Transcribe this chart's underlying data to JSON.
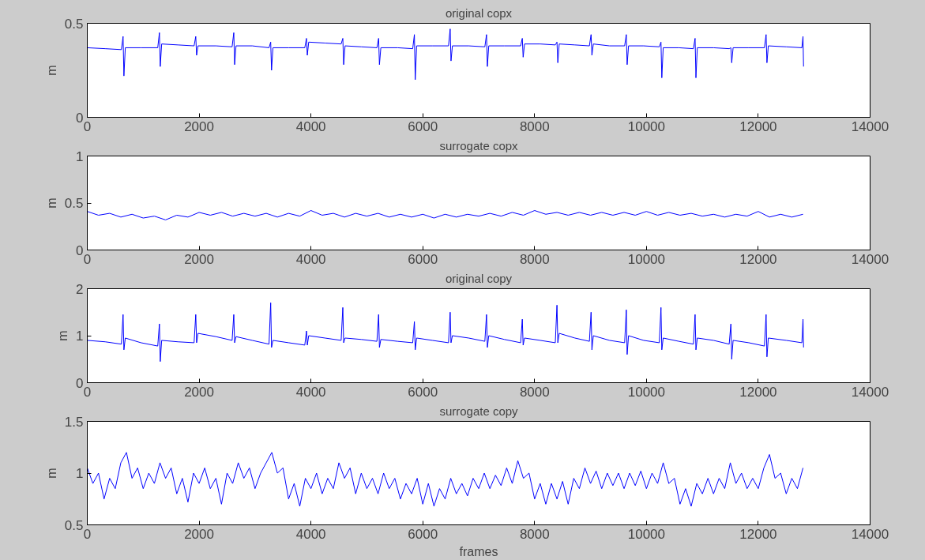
{
  "chart_data": [
    {
      "type": "line",
      "title": "original copx",
      "ylabel": "m",
      "xlim": [
        0,
        14000
      ],
      "xticks": [
        0,
        2000,
        4000,
        6000,
        8000,
        10000,
        12000,
        14000
      ],
      "ylim": [
        0,
        0.5
      ],
      "yticks": [
        0,
        0.5
      ],
      "grid": false,
      "x": [
        0,
        320,
        610,
        640,
        655,
        680,
        960,
        1260,
        1290,
        1305,
        1330,
        1620,
        1910,
        1940,
        1955,
        1980,
        2300,
        2590,
        2620,
        2635,
        2660,
        2950,
        3250,
        3280,
        3295,
        3320,
        3600,
        3890,
        3920,
        3935,
        3960,
        4250,
        4540,
        4570,
        4585,
        4610,
        4900,
        5180,
        5210,
        5225,
        5250,
        5550,
        5820,
        5850,
        5865,
        5890,
        6170,
        6460,
        6490,
        6505,
        6530,
        6820,
        7110,
        7140,
        7155,
        7180,
        7460,
        7750,
        7780,
        7795,
        7820,
        8100,
        8370,
        8400,
        8415,
        8440,
        8720,
        8980,
        9010,
        9025,
        9050,
        9340,
        9610,
        9640,
        9655,
        9680,
        9950,
        10230,
        10260,
        10275,
        10300,
        10580,
        10840,
        10870,
        10885,
        10910,
        11200,
        11480,
        11510,
        11525,
        11550,
        11830,
        12110,
        12140,
        12155,
        12180,
        12500,
        12780,
        12800,
        12810
      ],
      "series": [
        {
          "color": "#0000ff",
          "values": [
            0.37,
            0.365,
            0.36,
            0.43,
            0.22,
            0.37,
            0.37,
            0.37,
            0.45,
            0.27,
            0.39,
            0.385,
            0.38,
            0.43,
            0.33,
            0.38,
            0.38,
            0.375,
            0.45,
            0.28,
            0.38,
            0.38,
            0.37,
            0.4,
            0.25,
            0.37,
            0.37,
            0.37,
            0.42,
            0.33,
            0.4,
            0.395,
            0.39,
            0.42,
            0.28,
            0.38,
            0.375,
            0.37,
            0.42,
            0.28,
            0.37,
            0.37,
            0.365,
            0.44,
            0.2,
            0.38,
            0.38,
            0.38,
            0.47,
            0.3,
            0.38,
            0.38,
            0.375,
            0.44,
            0.27,
            0.38,
            0.38,
            0.38,
            0.42,
            0.32,
            0.39,
            0.39,
            0.385,
            0.4,
            0.29,
            0.39,
            0.385,
            0.38,
            0.44,
            0.33,
            0.39,
            0.38,
            0.38,
            0.44,
            0.28,
            0.38,
            0.38,
            0.375,
            0.4,
            0.21,
            0.37,
            0.37,
            0.365,
            0.42,
            0.21,
            0.37,
            0.37,
            0.365,
            0.37,
            0.29,
            0.37,
            0.37,
            0.37,
            0.44,
            0.29,
            0.38,
            0.375,
            0.37,
            0.43,
            0.27
          ]
        }
      ]
    },
    {
      "type": "line",
      "title": "surrogate copx",
      "ylabel": "m",
      "xlim": [
        0,
        14000
      ],
      "xticks": [
        0,
        2000,
        4000,
        6000,
        8000,
        10000,
        12000,
        14000
      ],
      "ylim": [
        0,
        1
      ],
      "yticks": [
        0,
        0.5,
        1
      ],
      "grid": false,
      "x": [
        0,
        200,
        400,
        600,
        800,
        1000,
        1200,
        1400,
        1600,
        1800,
        2000,
        2200,
        2400,
        2600,
        2800,
        3000,
        3200,
        3400,
        3600,
        3800,
        4000,
        4200,
        4400,
        4600,
        4800,
        5000,
        5200,
        5400,
        5600,
        5800,
        6000,
        6200,
        6400,
        6600,
        6800,
        7000,
        7200,
        7400,
        7600,
        7800,
        8000,
        8200,
        8400,
        8600,
        8800,
        9000,
        9200,
        9400,
        9600,
        9800,
        10000,
        10200,
        10400,
        10600,
        10800,
        11000,
        11200,
        11400,
        11600,
        11800,
        12000,
        12200,
        12400,
        12600,
        12800
      ],
      "series": [
        {
          "color": "#0000ff",
          "values": [
            0.41,
            0.37,
            0.39,
            0.35,
            0.38,
            0.34,
            0.36,
            0.32,
            0.37,
            0.35,
            0.4,
            0.37,
            0.4,
            0.36,
            0.39,
            0.36,
            0.39,
            0.35,
            0.39,
            0.36,
            0.42,
            0.37,
            0.39,
            0.35,
            0.39,
            0.36,
            0.39,
            0.35,
            0.38,
            0.35,
            0.38,
            0.34,
            0.38,
            0.35,
            0.38,
            0.36,
            0.39,
            0.36,
            0.4,
            0.37,
            0.42,
            0.38,
            0.4,
            0.37,
            0.4,
            0.37,
            0.4,
            0.37,
            0.4,
            0.37,
            0.41,
            0.37,
            0.4,
            0.37,
            0.39,
            0.36,
            0.38,
            0.35,
            0.38,
            0.36,
            0.41,
            0.35,
            0.38,
            0.35,
            0.38
          ]
        }
      ]
    },
    {
      "type": "line",
      "title": "original copy",
      "ylabel": "m",
      "xlim": [
        0,
        14000
      ],
      "xticks": [
        0,
        2000,
        4000,
        6000,
        8000,
        10000,
        12000,
        14000
      ],
      "ylim": [
        0,
        2
      ],
      "yticks": [
        0,
        1,
        2
      ],
      "grid": false,
      "x": [
        0,
        320,
        610,
        640,
        655,
        680,
        960,
        1260,
        1290,
        1305,
        1330,
        1620,
        1910,
        1940,
        1955,
        1980,
        2300,
        2590,
        2620,
        2635,
        2660,
        2950,
        3250,
        3280,
        3295,
        3320,
        3600,
        3890,
        3920,
        3935,
        3960,
        4250,
        4540,
        4570,
        4585,
        4610,
        4900,
        5180,
        5210,
        5225,
        5250,
        5550,
        5820,
        5850,
        5865,
        5890,
        6170,
        6460,
        6490,
        6505,
        6530,
        6820,
        7110,
        7140,
        7155,
        7180,
        7460,
        7750,
        7780,
        7795,
        7820,
        8100,
        8370,
        8400,
        8415,
        8440,
        8720,
        8980,
        9010,
        9025,
        9050,
        9340,
        9610,
        9640,
        9655,
        9680,
        9950,
        10230,
        10260,
        10275,
        10300,
        10580,
        10840,
        10870,
        10885,
        10910,
        11200,
        11480,
        11510,
        11525,
        11550,
        11830,
        12110,
        12140,
        12155,
        12180,
        12500,
        12780,
        12800,
        12810
      ],
      "series": [
        {
          "color": "#0000ff",
          "values": [
            0.9,
            0.87,
            0.82,
            1.45,
            0.7,
            0.95,
            0.85,
            0.78,
            1.25,
            0.45,
            0.9,
            0.87,
            0.85,
            1.45,
            0.85,
            1.05,
            0.98,
            0.9,
            1.45,
            0.85,
            0.98,
            0.9,
            0.82,
            1.7,
            0.75,
            0.9,
            0.85,
            0.8,
            1.1,
            0.8,
            1.0,
            0.95,
            0.9,
            1.6,
            0.85,
            0.95,
            0.92,
            0.88,
            1.45,
            0.75,
            0.92,
            0.88,
            0.85,
            1.3,
            0.7,
            0.95,
            0.9,
            0.85,
            1.5,
            0.85,
            1.0,
            0.95,
            0.88,
            1.45,
            0.75,
            1.0,
            0.92,
            0.85,
            1.35,
            0.8,
            0.95,
            0.9,
            0.85,
            1.65,
            0.85,
            1.05,
            0.95,
            0.88,
            1.5,
            0.7,
            1.0,
            0.9,
            0.85,
            1.55,
            0.6,
            1.0,
            0.9,
            0.85,
            1.6,
            0.7,
            0.95,
            0.88,
            0.82,
            1.45,
            0.7,
            0.95,
            0.9,
            0.82,
            1.25,
            0.5,
            0.9,
            0.85,
            0.78,
            1.45,
            0.55,
            0.95,
            0.9,
            0.85,
            1.35,
            0.75
          ]
        }
      ]
    },
    {
      "type": "line",
      "title": "surrogate copy",
      "ylabel": "m",
      "xlabel": "frames",
      "xlim": [
        0,
        14000
      ],
      "xticks": [
        0,
        2000,
        4000,
        6000,
        8000,
        10000,
        12000,
        14000
      ],
      "ylim": [
        0.5,
        1.5
      ],
      "yticks": [
        0.5,
        1,
        1.5
      ],
      "grid": false,
      "x": [
        0,
        100,
        200,
        300,
        400,
        500,
        600,
        700,
        800,
        900,
        1000,
        1100,
        1200,
        1300,
        1400,
        1500,
        1600,
        1700,
        1800,
        1900,
        2000,
        2100,
        2200,
        2300,
        2400,
        2500,
        2600,
        2700,
        2800,
        2900,
        3000,
        3100,
        3200,
        3300,
        3400,
        3500,
        3600,
        3700,
        3800,
        3900,
        4000,
        4100,
        4200,
        4300,
        4400,
        4500,
        4600,
        4700,
        4800,
        4900,
        5000,
        5100,
        5200,
        5300,
        5400,
        5500,
        5600,
        5700,
        5800,
        5900,
        6000,
        6100,
        6200,
        6300,
        6400,
        6500,
        6600,
        6700,
        6800,
        6900,
        7000,
        7100,
        7200,
        7300,
        7400,
        7500,
        7600,
        7700,
        7800,
        7900,
        8000,
        8100,
        8200,
        8300,
        8400,
        8500,
        8600,
        8700,
        8800,
        8900,
        9000,
        9100,
        9200,
        9300,
        9400,
        9500,
        9600,
        9700,
        9800,
        9900,
        10000,
        10100,
        10200,
        10300,
        10400,
        10500,
        10600,
        10700,
        10800,
        10900,
        11000,
        11100,
        11200,
        11300,
        11400,
        11500,
        11600,
        11700,
        11800,
        11900,
        12000,
        12100,
        12200,
        12300,
        12400,
        12500,
        12600,
        12700,
        12800
      ],
      "series": [
        {
          "color": "#0000ff",
          "values": [
            1.05,
            0.9,
            1.0,
            0.75,
            0.95,
            0.85,
            1.1,
            1.2,
            0.95,
            1.05,
            0.85,
            1.0,
            0.9,
            1.1,
            0.95,
            1.05,
            0.8,
            0.95,
            0.72,
            1.0,
            0.9,
            1.05,
            0.85,
            0.95,
            0.7,
            1.0,
            0.9,
            1.1,
            0.95,
            1.05,
            0.85,
            1.0,
            1.1,
            1.2,
            1.0,
            1.05,
            0.75,
            0.9,
            0.68,
            0.95,
            0.85,
            1.0,
            0.8,
            0.95,
            0.85,
            1.1,
            0.95,
            1.05,
            0.8,
            1.0,
            0.85,
            0.95,
            0.8,
            1.0,
            0.85,
            0.95,
            0.75,
            0.9,
            0.8,
            0.95,
            0.7,
            0.9,
            0.68,
            0.85,
            0.75,
            0.95,
            0.8,
            0.9,
            0.78,
            0.95,
            0.85,
            1.0,
            0.85,
            0.98,
            0.88,
            1.05,
            0.9,
            1.12,
            0.95,
            1.0,
            0.75,
            0.9,
            0.7,
            0.9,
            0.75,
            0.92,
            0.7,
            0.95,
            0.85,
            1.05,
            0.9,
            1.02,
            0.85,
            1.0,
            0.88,
            1.0,
            0.85,
            1.0,
            0.88,
            1.02,
            0.85,
            1.0,
            0.9,
            1.1,
            0.9,
            0.95,
            0.7,
            0.85,
            0.68,
            0.9,
            0.8,
            0.95,
            0.8,
            0.95,
            0.85,
            1.1,
            0.9,
            1.0,
            0.85,
            0.95,
            0.85,
            1.05,
            1.18,
            0.95,
            1.0,
            0.8,
            0.95,
            0.85,
            1.05
          ]
        }
      ]
    }
  ]
}
